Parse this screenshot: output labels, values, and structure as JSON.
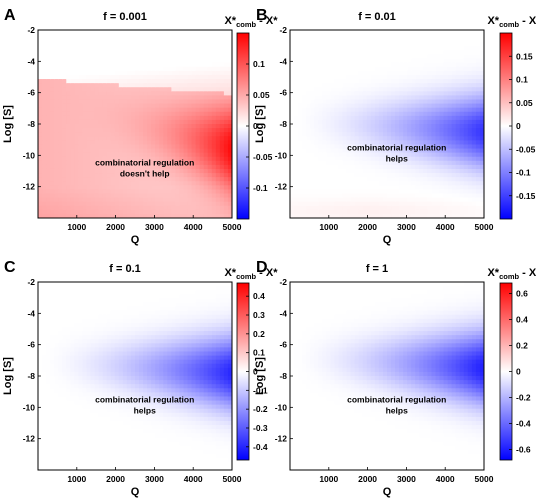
{
  "figure": {
    "panels_text": {
      "A": {
        "letter": "A",
        "title": "f = 0.001",
        "annotation": [
          "combinatorial regulation",
          "doesn't help"
        ]
      },
      "B": {
        "letter": "B",
        "title": "f = 0.01",
        "annotation": [
          "combinatorial regulation",
          "helps"
        ]
      },
      "C": {
        "letter": "C",
        "title": "f = 0.1",
        "annotation": [
          "combinatorial regulation",
          "helps"
        ]
      },
      "D": {
        "letter": "D",
        "title": "f = 1",
        "annotation": [
          "combinatorial regulation",
          "helps"
        ]
      }
    },
    "colorbar_label": {
      "main": "X*",
      "sub": "comb",
      "tail": " - X*"
    },
    "colors": {
      "positive": "#ff0000",
      "zero": "#ffffff",
      "negative": "#0000ff"
    }
  },
  "chart_data": [
    {
      "id": "A",
      "type": "heatmap",
      "title": "f = 0.001",
      "xlabel": "Q",
      "ylabel": "Log [S]",
      "xlim": [
        0,
        5000
      ],
      "ylim": [
        -14,
        -2
      ],
      "xticks": [
        1000,
        2000,
        3000,
        4000,
        5000
      ],
      "yticks": [
        -2,
        -4,
        -6,
        -8,
        -10,
        -12
      ],
      "colorbar": {
        "range": [
          -0.15,
          0.15
        ],
        "ticks": [
          -0.1,
          -0.05,
          0,
          0.05,
          0.1
        ],
        "tick_labels": [
          "-0.1",
          "-0.05",
          "0",
          "0.05",
          "0.1"
        ]
      },
      "feature": {
        "sign": "positive",
        "peak": 0.12,
        "peak_at": {
          "Q": 5000,
          "logS": -8
        },
        "background": 0.03
      },
      "annotation": "combinatorial regulation doesn't help"
    },
    {
      "id": "B",
      "type": "heatmap",
      "title": "f = 0.01",
      "xlabel": "Q",
      "ylabel": "Log [S]",
      "xlim": [
        0,
        5000
      ],
      "ylim": [
        -14,
        -2
      ],
      "xticks": [
        1000,
        2000,
        3000,
        4000,
        5000
      ],
      "yticks": [
        -2,
        -4,
        -6,
        -8,
        -10,
        -12
      ],
      "colorbar": {
        "range": [
          -0.2,
          0.2
        ],
        "ticks": [
          -0.15,
          -0.1,
          -0.05,
          0,
          0.05,
          0.1,
          0.15
        ],
        "tick_labels": [
          "-0.15",
          "-0.1",
          "-0.05",
          "0",
          "0.05",
          "0.1",
          "0.15"
        ]
      },
      "feature": {
        "sign": "negative",
        "peak": -0.16,
        "peak_at": {
          "Q": 5000,
          "logS": -8.5
        },
        "background": 0.0
      },
      "annotation": "combinatorial regulation helps"
    },
    {
      "id": "C",
      "type": "heatmap",
      "title": "f = 0.1",
      "xlabel": "Q",
      "ylabel": "Log [S]",
      "xlim": [
        0,
        5000
      ],
      "ylim": [
        -14,
        -2
      ],
      "xticks": [
        1000,
        2000,
        3000,
        4000,
        5000
      ],
      "yticks": [
        -2,
        -4,
        -6,
        -8,
        -10,
        -12
      ],
      "colorbar": {
        "range": [
          -0.47,
          0.47
        ],
        "ticks": [
          -0.4,
          -0.3,
          -0.2,
          -0.1,
          0,
          0.1,
          0.2,
          0.3,
          0.4
        ],
        "tick_labels": [
          "-0.4",
          "-0.3",
          "-0.2",
          "-0.1",
          "0",
          "0.1",
          "0.2",
          "0.3",
          "0.4"
        ]
      },
      "feature": {
        "sign": "negative",
        "peak": -0.4,
        "peak_at": {
          "Q": 5000,
          "logS": -7.8
        },
        "background": 0.0
      },
      "annotation": "combinatorial regulation helps"
    },
    {
      "id": "D",
      "type": "heatmap",
      "title": "f = 1",
      "xlabel": "Q",
      "ylabel": "Log [S]",
      "xlim": [
        0,
        5000
      ],
      "ylim": [
        -14,
        -2
      ],
      "xticks": [
        1000,
        2000,
        3000,
        4000,
        5000
      ],
      "yticks": [
        -2,
        -4,
        -6,
        -8,
        -10,
        -12
      ],
      "colorbar": {
        "range": [
          -0.68,
          0.68
        ],
        "ticks": [
          -0.6,
          -0.4,
          -0.2,
          0,
          0.2,
          0.4,
          0.6
        ],
        "tick_labels": [
          "-0.6",
          "-0.4",
          "-0.2",
          "0",
          "0.2",
          "0.4",
          "0.6"
        ]
      },
      "feature": {
        "sign": "negative",
        "peak": -0.6,
        "peak_at": {
          "Q": 5000,
          "logS": -7.5
        },
        "background": 0.0
      },
      "annotation": "combinatorial regulation helps"
    }
  ]
}
